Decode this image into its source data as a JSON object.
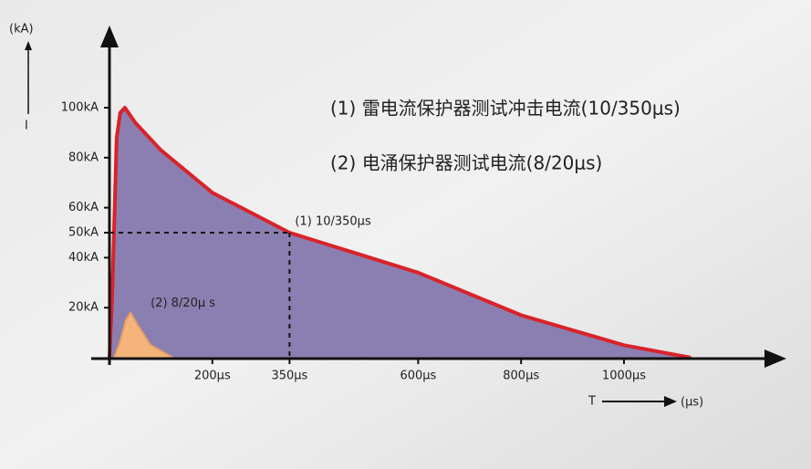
{
  "chart_data": {
    "type": "area",
    "legend_lines": [
      "(1) 雷电流保护器测试冲击电流(10/350μs)",
      "(2) 电涌保护器测试电流(8/20μs)"
    ],
    "ylabel": "(kA)",
    "ysymbol": "I",
    "xlabel": "(μs)",
    "xsymbol": "T",
    "xlim": [
      0,
      1300
    ],
    "ylim": [
      0,
      125
    ],
    "xticks": [
      {
        "value": 200,
        "label": "200μs"
      },
      {
        "value": 350,
        "label": "350μs"
      },
      {
        "value": 600,
        "label": "600μs"
      },
      {
        "value": 800,
        "label": "800μs"
      },
      {
        "value": 1000,
        "label": "1000μs"
      }
    ],
    "yticks": [
      {
        "value": 20,
        "label": "20kA"
      },
      {
        "value": 40,
        "label": "40kA"
      },
      {
        "value": 50,
        "label": "50kA"
      },
      {
        "value": 60,
        "label": "60kA"
      },
      {
        "value": 80,
        "label": "80kA"
      },
      {
        "value": 100,
        "label": "100kA"
      }
    ],
    "reference_point": {
      "x": 350,
      "y": 50
    },
    "series": [
      {
        "name": "(1) 10/350μs",
        "color": "#d8232a",
        "fill": "#8b7fb1",
        "x": [
          0,
          5,
          14,
          21,
          30,
          50,
          100,
          200,
          350,
          600,
          800,
          1000,
          1130
        ],
        "values": [
          0,
          23,
          88,
          98,
          100,
          94,
          83,
          66,
          50,
          34,
          17,
          5,
          0
        ]
      },
      {
        "name": "(2) 8/20μ s",
        "color": "#e8a060",
        "fill": "#f5b47c",
        "x": [
          9,
          20,
          32,
          41,
          55,
          80,
          124
        ],
        "values": [
          0,
          6,
          15,
          18,
          13,
          5,
          0
        ]
      }
    ]
  }
}
